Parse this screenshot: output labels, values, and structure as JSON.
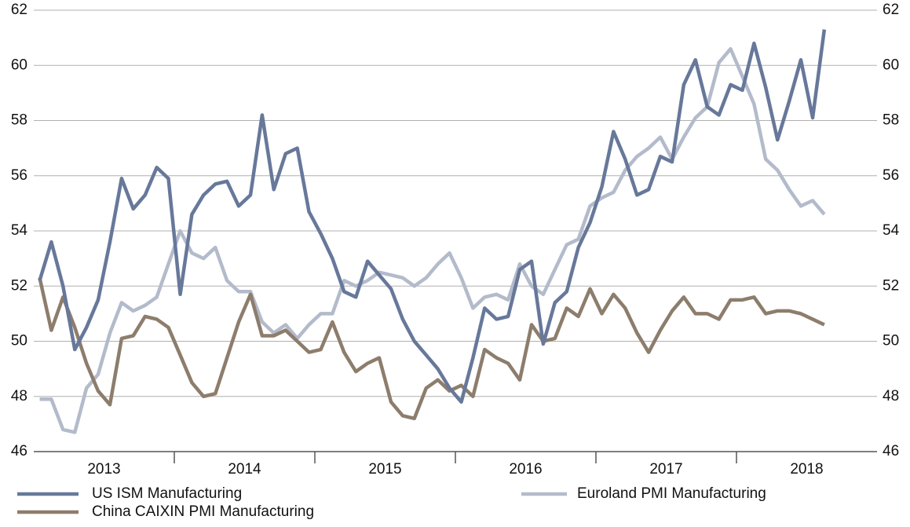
{
  "chart_data": {
    "type": "line",
    "x": [
      2013.042,
      2013.125,
      2013.208,
      2013.292,
      2013.375,
      2013.458,
      2013.542,
      2013.625,
      2013.708,
      2013.792,
      2013.875,
      2013.958,
      2014.042,
      2014.125,
      2014.208,
      2014.292,
      2014.375,
      2014.458,
      2014.542,
      2014.625,
      2014.708,
      2014.792,
      2014.875,
      2014.958,
      2015.042,
      2015.125,
      2015.208,
      2015.292,
      2015.375,
      2015.458,
      2015.542,
      2015.625,
      2015.708,
      2015.792,
      2015.875,
      2015.958,
      2016.042,
      2016.125,
      2016.208,
      2016.292,
      2016.375,
      2016.458,
      2016.542,
      2016.625,
      2016.708,
      2016.792,
      2016.875,
      2016.958,
      2017.042,
      2017.125,
      2017.208,
      2017.292,
      2017.375,
      2017.458,
      2017.542,
      2017.625,
      2017.708,
      2017.792,
      2017.875,
      2017.958,
      2018.042,
      2018.125,
      2018.208,
      2018.292,
      2018.375,
      2018.458,
      2018.542,
      2018.625
    ],
    "series": [
      {
        "name": "US ISM Manufacturing",
        "color": "#67789a",
        "values": [
          52.2,
          53.6,
          52.0,
          49.7,
          50.5,
          51.5,
          53.6,
          55.9,
          54.8,
          55.3,
          56.3,
          55.9,
          51.7,
          54.6,
          55.3,
          55.7,
          55.8,
          54.9,
          55.3,
          58.2,
          55.5,
          56.8,
          57.0,
          54.7,
          53.9,
          53.0,
          51.8,
          51.6,
          52.9,
          52.4,
          51.9,
          50.8,
          50.0,
          49.5,
          49.0,
          48.3,
          47.8,
          49.4,
          51.2,
          50.8,
          50.9,
          52.6,
          52.9,
          49.9,
          51.4,
          51.8,
          53.4,
          54.3,
          55.6,
          57.6,
          56.6,
          55.3,
          55.5,
          56.7,
          56.5,
          59.3,
          60.2,
          58.5,
          58.2,
          59.3,
          59.1,
          60.8,
          59.2,
          57.3,
          58.7,
          60.2,
          58.1,
          61.3
        ]
      },
      {
        "name": "Euroland PMI Manufacturing",
        "color": "#b3bbcb",
        "values": [
          47.9,
          47.9,
          46.8,
          46.7,
          48.3,
          48.8,
          50.3,
          51.4,
          51.1,
          51.3,
          51.6,
          52.8,
          54.0,
          53.2,
          53.0,
          53.4,
          52.2,
          51.8,
          51.8,
          50.7,
          50.3,
          50.6,
          50.1,
          50.6,
          51.0,
          51.0,
          52.2,
          52.0,
          52.2,
          52.5,
          52.4,
          52.3,
          52.0,
          52.3,
          52.8,
          53.2,
          52.3,
          51.2,
          51.6,
          51.7,
          51.5,
          52.8,
          52.0,
          51.7,
          52.6,
          53.5,
          53.7,
          54.9,
          55.2,
          55.4,
          56.2,
          56.7,
          57.0,
          57.4,
          56.6,
          57.4,
          58.1,
          58.5,
          60.1,
          60.6,
          59.6,
          58.6,
          56.6,
          56.2,
          55.5,
          54.9,
          55.1,
          54.6
        ]
      },
      {
        "name": "China CAIXIN PMI Manufacturing",
        "color": "#8d7d6c",
        "values": [
          52.3,
          50.4,
          51.6,
          50.5,
          49.2,
          48.2,
          47.7,
          50.1,
          50.2,
          50.9,
          50.8,
          50.5,
          49.5,
          48.5,
          48.0,
          48.1,
          49.4,
          50.7,
          51.7,
          50.2,
          50.2,
          50.4,
          50.0,
          49.6,
          49.7,
          50.7,
          49.6,
          48.9,
          49.2,
          49.4,
          47.8,
          47.3,
          47.2,
          48.3,
          48.6,
          48.2,
          48.4,
          48.0,
          49.7,
          49.4,
          49.2,
          48.6,
          50.6,
          50.0,
          50.1,
          51.2,
          50.9,
          51.9,
          51.0,
          51.7,
          51.2,
          50.3,
          49.6,
          50.4,
          51.1,
          51.6,
          51.0,
          51.0,
          50.8,
          51.5,
          51.5,
          51.6,
          51.0,
          51.1,
          51.1,
          51.0,
          50.8,
          50.6
        ]
      }
    ],
    "xlim": [
      2013,
      2019
    ],
    "xticks": [
      {
        "value": 2013.5,
        "label": "2013"
      },
      {
        "value": 2014.5,
        "label": "2014"
      },
      {
        "value": 2015.5,
        "label": "2015"
      },
      {
        "value": 2016.5,
        "label": "2016"
      },
      {
        "value": 2017.5,
        "label": "2017"
      },
      {
        "value": 2018.5,
        "label": "2018"
      }
    ],
    "ylim": [
      46,
      62
    ],
    "yticks": [
      46,
      48,
      50,
      52,
      54,
      56,
      58,
      60,
      62
    ],
    "y2lim": [
      46,
      62
    ],
    "y2ticks": [
      46,
      48,
      50,
      52,
      54,
      56,
      58,
      60,
      62
    ],
    "grid": true
  }
}
